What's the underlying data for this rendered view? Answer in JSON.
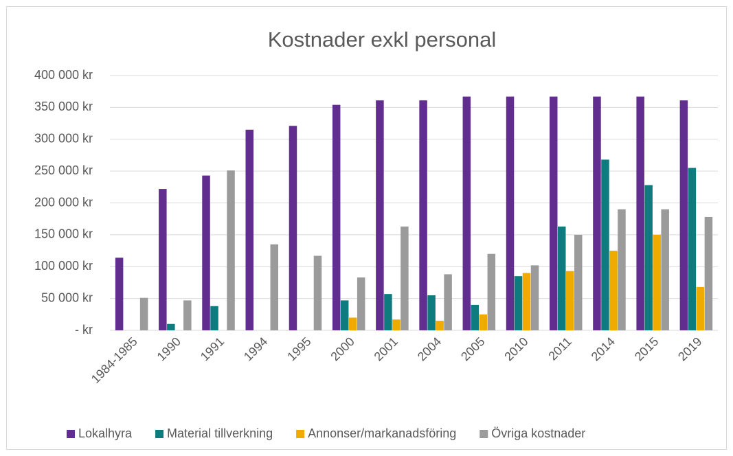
{
  "chart_data": {
    "type": "bar",
    "title": "Kostnader exkl personal",
    "categories": [
      "1984-1985",
      "1990",
      "1991",
      "1994",
      "1995",
      "2000",
      "2001",
      "2004",
      "2005",
      "2010",
      "2011",
      "2014",
      "2015",
      "2019"
    ],
    "series": [
      {
        "name": "Lokalhyra",
        "color": "#612d8f",
        "values": [
          114000,
          222000,
          243000,
          315000,
          321000,
          354000,
          361000,
          361000,
          367000,
          367000,
          367000,
          367000,
          367000,
          361000
        ]
      },
      {
        "name": "Material tillverkning",
        "color": "#0e7c7e",
        "values": [
          0,
          10000,
          38000,
          0,
          0,
          47000,
          57000,
          55000,
          40000,
          85000,
          163000,
          268000,
          228000,
          255000
        ]
      },
      {
        "name": "Annonser/markanadsföring",
        "color": "#f0ab00",
        "values": [
          0,
          0,
          0,
          0,
          0,
          20000,
          17000,
          15000,
          25000,
          90000,
          93000,
          125000,
          150000,
          68000
        ]
      },
      {
        "name": "Övriga kostnader",
        "color": "#9b9b9b",
        "values": [
          51000,
          47000,
          251000,
          135000,
          117000,
          83000,
          163000,
          88000,
          120000,
          102000,
          150000,
          190000,
          190000,
          178000
        ]
      }
    ],
    "ylim": [
      0,
      400000
    ],
    "yticks": [
      {
        "value": 0,
        "label": "-   kr"
      },
      {
        "value": 50000,
        "label": "50 000 kr"
      },
      {
        "value": 100000,
        "label": "100 000 kr"
      },
      {
        "value": 150000,
        "label": "150 000 kr"
      },
      {
        "value": 200000,
        "label": "200 000 kr"
      },
      {
        "value": 250000,
        "label": "250 000 kr"
      },
      {
        "value": 300000,
        "label": "300 000 kr"
      },
      {
        "value": 350000,
        "label": "350 000 kr"
      },
      {
        "value": 400000,
        "label": "400 000 kr"
      }
    ],
    "grid": true,
    "legend": "bottom"
  }
}
